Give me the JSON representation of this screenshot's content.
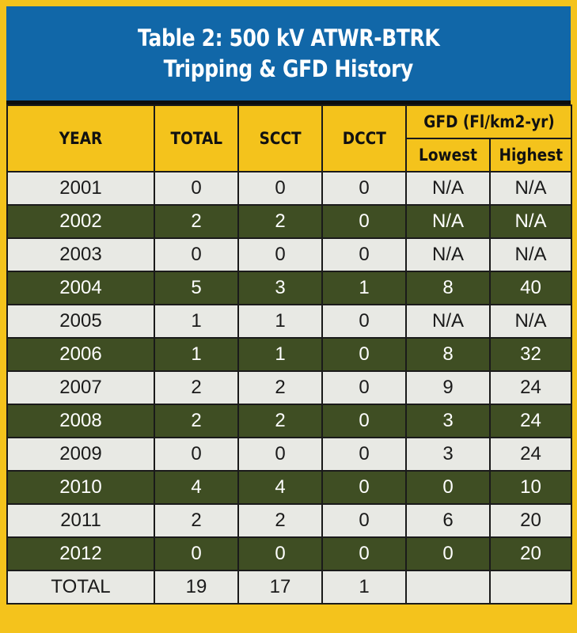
{
  "title": {
    "line1": "Table 2: 500 kV ATWR-BTRK",
    "line2": "Tripping & GFD History"
  },
  "columns": {
    "year": "YEAR",
    "total": "TOTAL",
    "scct": "SCCT",
    "dcct": "DCCT",
    "gfd": "GFD (Fl/km2-yr)",
    "lowest": "Lowest",
    "highest": "Highest"
  },
  "rows": [
    {
      "year": "2001",
      "total": "0",
      "scct": "0",
      "dcct": "0",
      "lowest": "N/A",
      "highest": "N/A"
    },
    {
      "year": "2002",
      "total": "2",
      "scct": "2",
      "dcct": "0",
      "lowest": "N/A",
      "highest": "N/A"
    },
    {
      "year": "2003",
      "total": "0",
      "scct": "0",
      "dcct": "0",
      "lowest": "N/A",
      "highest": "N/A"
    },
    {
      "year": "2004",
      "total": "5",
      "scct": "3",
      "dcct": "1",
      "lowest": "8",
      "highest": "40"
    },
    {
      "year": "2005",
      "total": "1",
      "scct": "1",
      "dcct": "0",
      "lowest": "N/A",
      "highest": "N/A"
    },
    {
      "year": "2006",
      "total": "1",
      "scct": "1",
      "dcct": "0",
      "lowest": "8",
      "highest": "32"
    },
    {
      "year": "2007",
      "total": "2",
      "scct": "2",
      "dcct": "0",
      "lowest": "9",
      "highest": "24"
    },
    {
      "year": "2008",
      "total": "2",
      "scct": "2",
      "dcct": "0",
      "lowest": "3",
      "highest": "24"
    },
    {
      "year": "2009",
      "total": "0",
      "scct": "0",
      "dcct": "0",
      "lowest": "3",
      "highest": "24"
    },
    {
      "year": "2010",
      "total": "4",
      "scct": "4",
      "dcct": "0",
      "lowest": "0",
      "highest": "10"
    },
    {
      "year": "2011",
      "total": "2",
      "scct": "2",
      "dcct": "0",
      "lowest": "6",
      "highest": "20"
    },
    {
      "year": "2012",
      "total": "0",
      "scct": "0",
      "dcct": "0",
      "lowest": "0",
      "highest": "20"
    }
  ],
  "totals": {
    "label": "TOTAL",
    "total": "19",
    "scct": "17",
    "dcct": "1",
    "lowest": "",
    "highest": ""
  },
  "colors": {
    "frame": "#f4c31c",
    "title_bg": "#1167a8",
    "row_light": "#e8e9e4",
    "row_dark": "#3f4e23"
  }
}
